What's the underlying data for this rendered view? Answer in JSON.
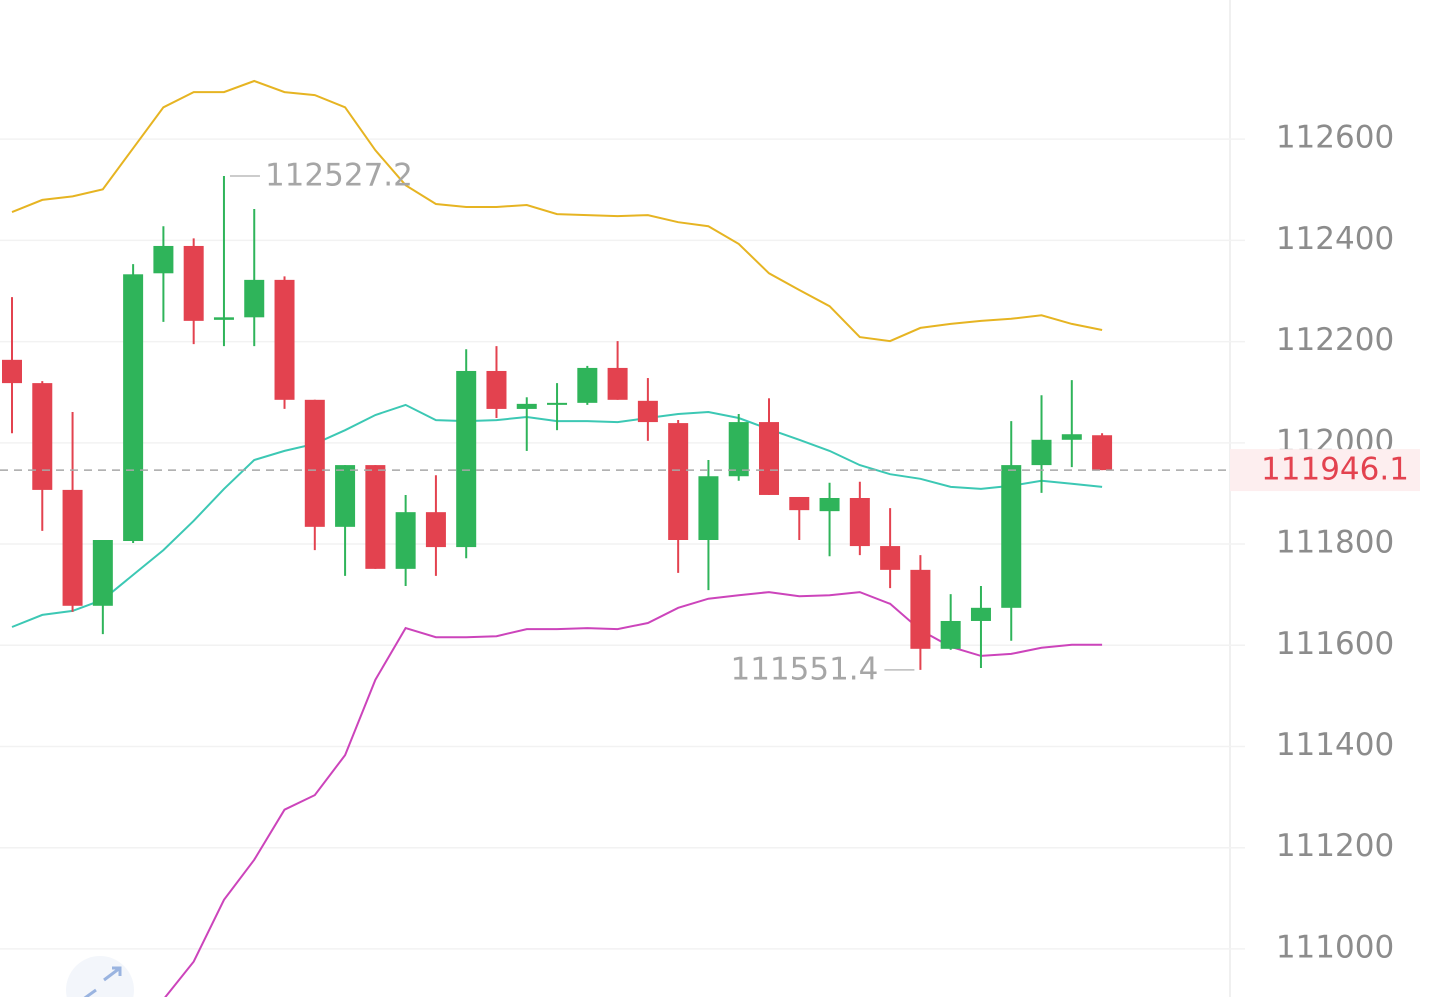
{
  "chart_data": {
    "type": "candlestick",
    "up_color": "#2fb45a",
    "down_color": "#e3424f",
    "ylim": [
      110905,
      112875
    ],
    "yticks": [
      111000,
      111200,
      111400,
      111600,
      111800,
      112000,
      112200,
      112400,
      112600
    ],
    "grid": true,
    "open": [
      112164,
      112118,
      111907,
      111678,
      111806,
      112335,
      112389,
      112243,
      112248,
      112322,
      112085,
      111834,
      111956,
      111751,
      111863,
      111794,
      112142,
      112067,
      112075,
      112079,
      112148,
      112083,
      112039,
      111808,
      111934,
      112041,
      111893,
      111865,
      111891,
      111796,
      111749,
      111593,
      111648,
      111674,
      111956,
      112006,
      112015
    ],
    "high": [
      112288,
      112122,
      112061,
      111808,
      112353,
      112428,
      112404,
      112527.2,
      112462,
      112329,
      112085,
      111956,
      111956,
      111897,
      111936,
      112185,
      112191,
      112090,
      112118,
      112152,
      112201,
      112128,
      112045,
      111966,
      112057,
      112088,
      111893,
      111921,
      111923,
      111871,
      111778,
      111701,
      111717,
      112043,
      112094,
      112124,
      112019
    ],
    "low": [
      112019,
      111826,
      111666,
      111622,
      111802,
      112239,
      112195,
      112191,
      112191,
      112067,
      111788,
      111737,
      111751,
      111717,
      111737,
      111772,
      112049,
      111984,
      112025,
      112075,
      112085,
      112004,
      111743,
      111709,
      111925,
      111897,
      111808,
      111776,
      111778,
      111713,
      111551.4,
      111591,
      111555,
      111609,
      111901,
      111952,
      111946.1
    ],
    "close": [
      112118,
      111907,
      111678,
      111808,
      112333,
      112389,
      112241,
      112248,
      112322,
      112085,
      111834,
      111956,
      111751,
      111863,
      111794,
      112142,
      112067,
      112077,
      112079,
      112148,
      112085,
      112041,
      111808,
      111934,
      112041,
      111897,
      111867,
      111891,
      111796,
      111749,
      111593,
      111648,
      111674,
      111956,
      112006,
      112017,
      111946.1
    ],
    "overlays": [
      {
        "color": "#e6b422",
        "values": [
          112456,
          112480,
          112487,
          112501,
          112582,
          112663,
          112693,
          112693,
          112715,
          112693,
          112687,
          112663,
          112578,
          112509,
          112472,
          112466,
          112466,
          112470,
          112452,
          112450,
          112448,
          112450,
          112436,
          112428,
          112393,
          112335,
          112302,
          112270,
          112209,
          112201,
          112227,
          112235,
          112241,
          112245,
          112252,
          112235,
          112223
        ]
      },
      {
        "color": "#3cc8b4",
        "values": [
          111636,
          111660,
          111668,
          111690,
          111739,
          111788,
          111846,
          111909,
          111966,
          111984,
          111998,
          112025,
          112055,
          112075,
          112045,
          112043,
          112045,
          112051,
          112043,
          112043,
          112041,
          112049,
          112057,
          112061,
          112049,
          112027,
          112006,
          111984,
          111956,
          111938,
          111929,
          111913,
          111909,
          111915,
          111925,
          111919,
          111913
        ]
      },
      {
        "color": "#cc44bb",
        "values": [
          null,
          null,
          null,
          null,
          null,
          110900,
          110975,
          111097,
          111176,
          111275,
          111304,
          111383,
          111532,
          111634,
          111616,
          111616,
          111618,
          111632,
          111632,
          111634,
          111632,
          111644,
          111674,
          111692,
          111699,
          111705,
          111697,
          111699,
          111705,
          111682,
          111630,
          111597,
          111579,
          111583,
          111595,
          111601,
          111601
        ]
      }
    ]
  }
}
